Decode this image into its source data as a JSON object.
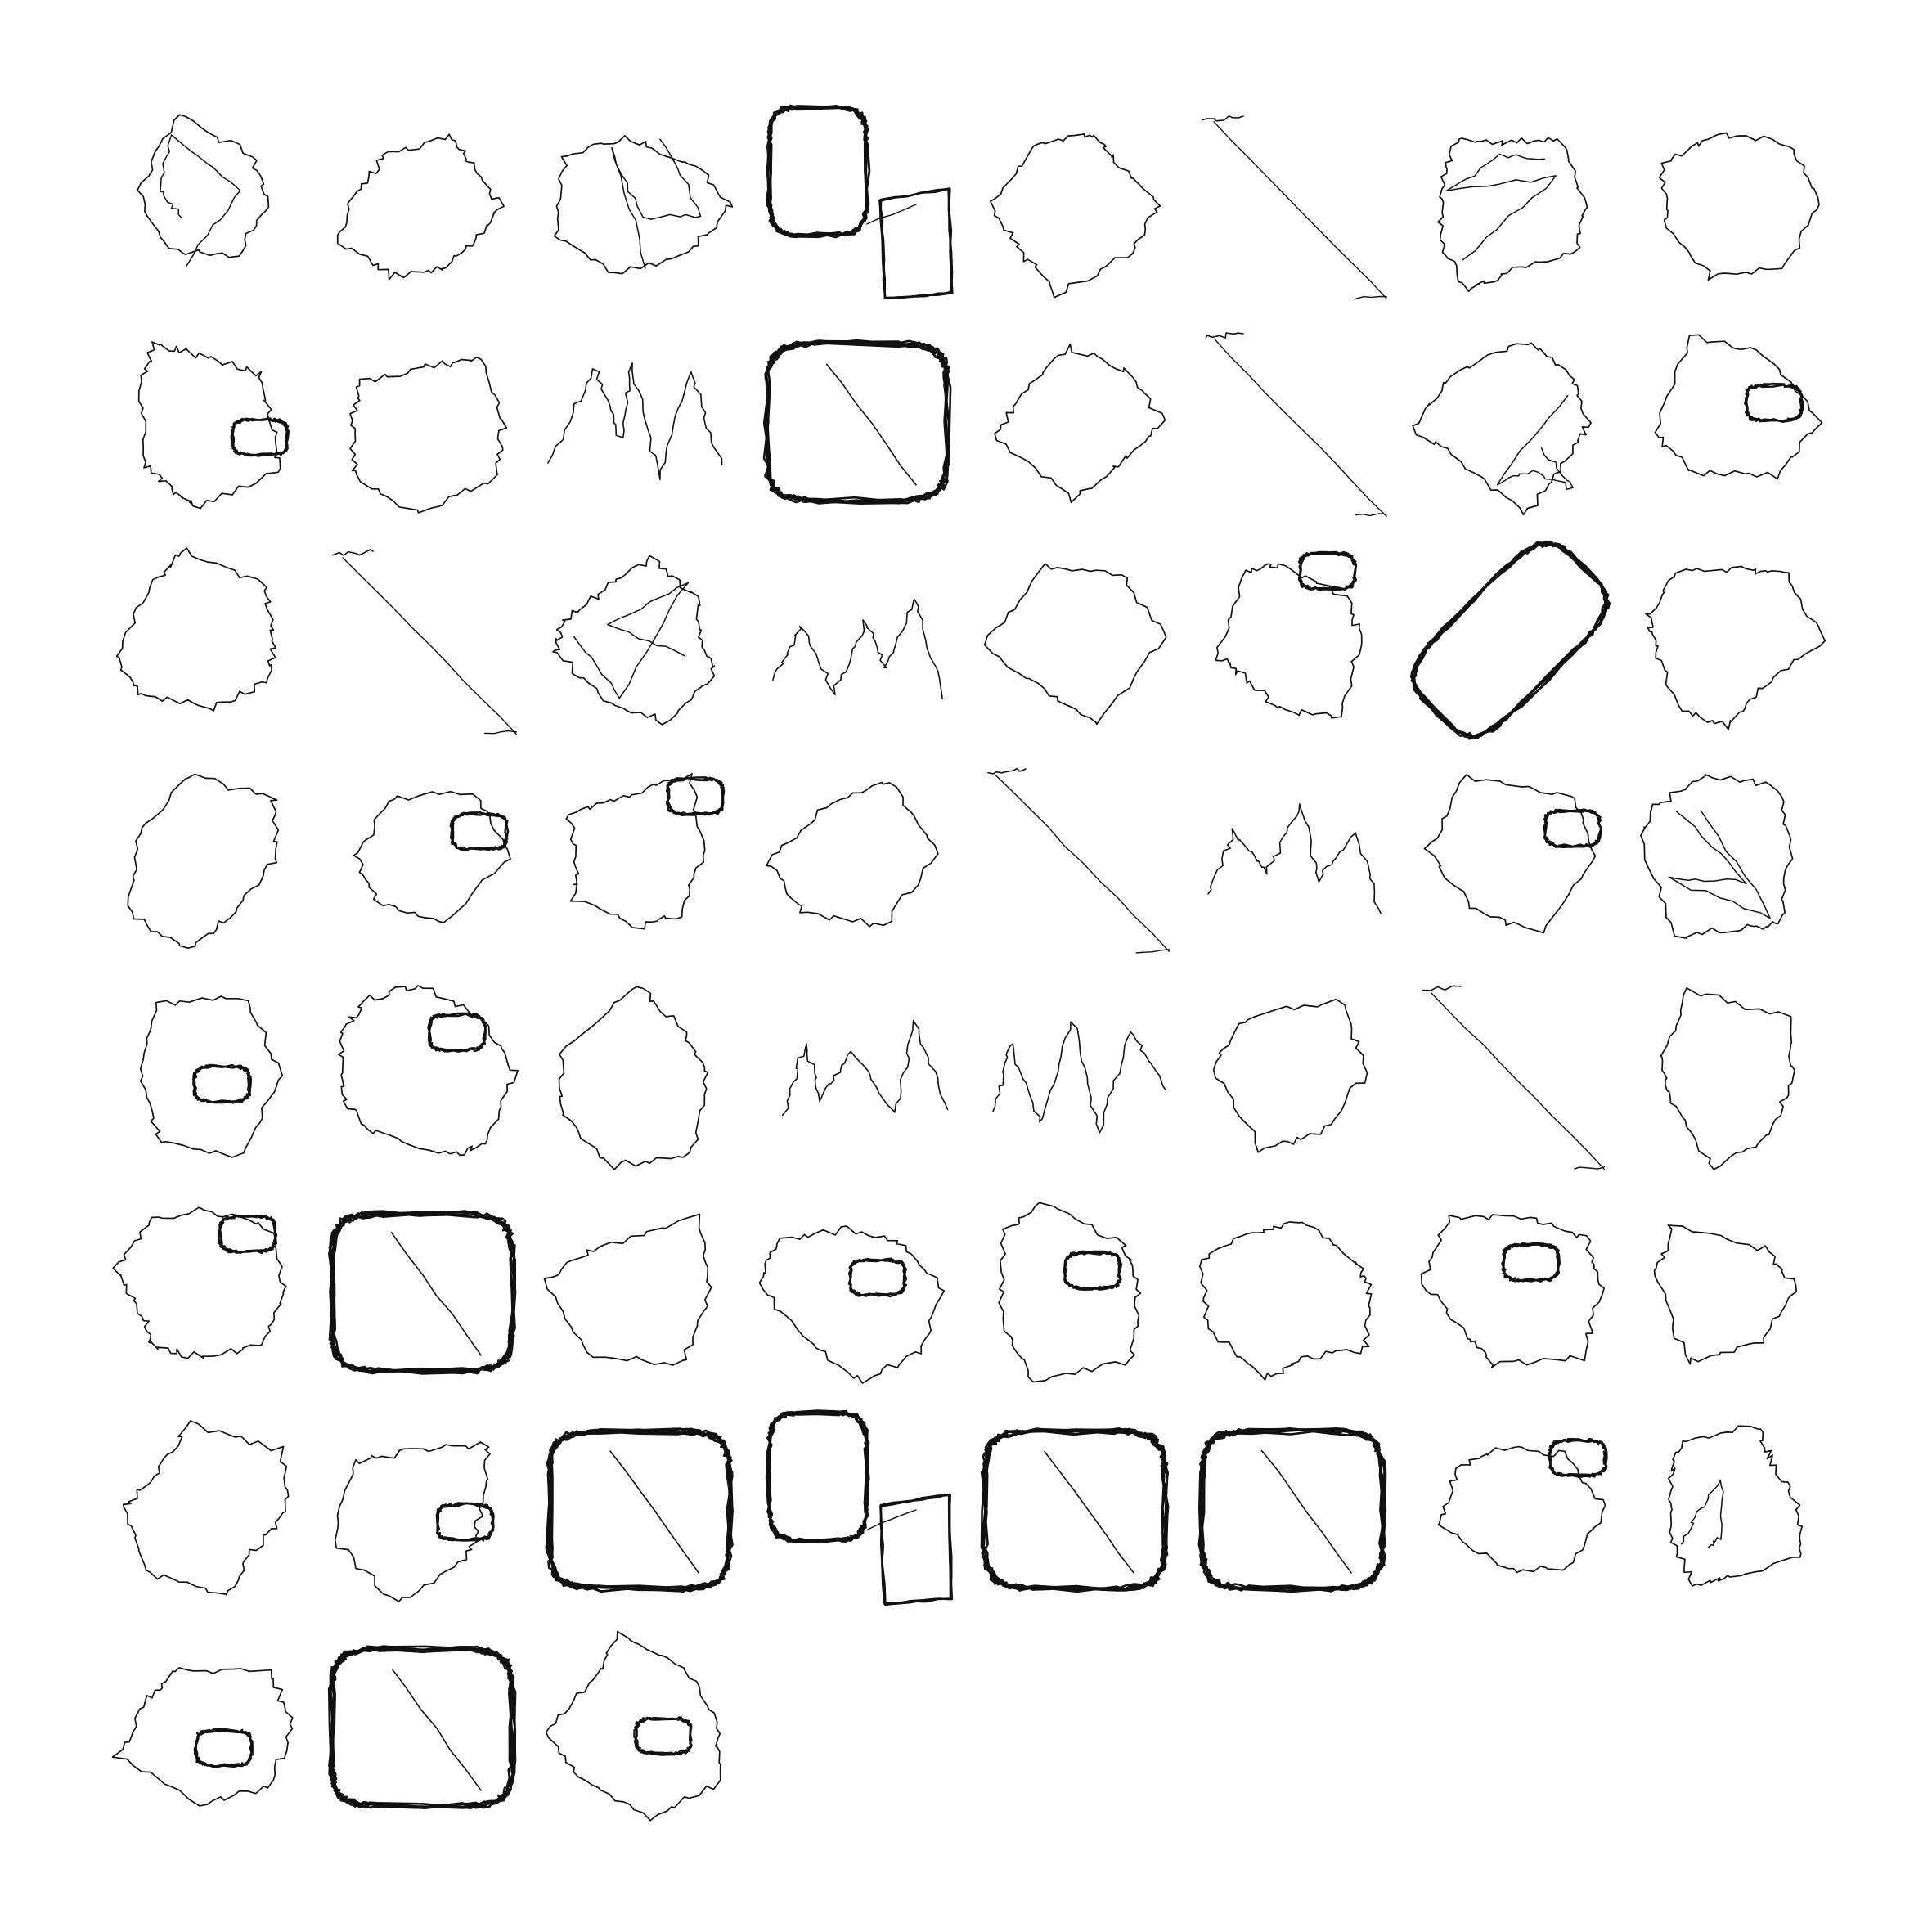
{
  "grid": {
    "columns": 8,
    "rows": 8,
    "total_drawings": 59
  },
  "palette": {
    "background": "#ffffff",
    "stroke": "#111111"
  },
  "drawings": [
    {
      "id": 1,
      "motif": "blob-with-strand"
    },
    {
      "id": 2,
      "motif": "jagged-polygon"
    },
    {
      "id": 3,
      "motif": "loop-and-polygon"
    },
    {
      "id": 4,
      "motif": "double-rect-heavy"
    },
    {
      "id": 5,
      "motif": "jagged-polygon"
    },
    {
      "id": 6,
      "motif": "long-diagonal"
    },
    {
      "id": 7,
      "motif": "blob-with-strand"
    },
    {
      "id": 8,
      "motif": "jagged-polygon"
    },
    {
      "id": 9,
      "motif": "polygon-with-rounded-loop"
    },
    {
      "id": 10,
      "motif": "jagged-polygon"
    },
    {
      "id": 11,
      "motif": "jagged-strand"
    },
    {
      "id": 12,
      "motif": "rounded-rect-heavy"
    },
    {
      "id": 13,
      "motif": "jagged-polygon"
    },
    {
      "id": 14,
      "motif": "long-diagonal"
    },
    {
      "id": 15,
      "motif": "loop-and-polygon"
    },
    {
      "id": 16,
      "motif": "polygon-with-rounded-loop"
    },
    {
      "id": 17,
      "motif": "jagged-polygon"
    },
    {
      "id": 18,
      "motif": "long-diagonal"
    },
    {
      "id": 19,
      "motif": "tangled-loop"
    },
    {
      "id": 20,
      "motif": "jagged-strand"
    },
    {
      "id": 21,
      "motif": "jagged-polygon"
    },
    {
      "id": 22,
      "motif": "polygon-with-rounded-loop"
    },
    {
      "id": 23,
      "motif": "diagonal-oval-heavy"
    },
    {
      "id": 24,
      "motif": "jagged-polygon"
    },
    {
      "id": 25,
      "motif": "jagged-polygon"
    },
    {
      "id": 26,
      "motif": "polygon-with-rounded-loop"
    },
    {
      "id": 27,
      "motif": "wedge-with-oval"
    },
    {
      "id": 28,
      "motif": "jagged-polygon"
    },
    {
      "id": 29,
      "motif": "long-diagonal"
    },
    {
      "id": 30,
      "motif": "jagged-strand"
    },
    {
      "id": 31,
      "motif": "wedge-with-oval"
    },
    {
      "id": 32,
      "motif": "split-polygon"
    },
    {
      "id": 33,
      "motif": "polygon-with-rounded-loop"
    },
    {
      "id": 34,
      "motif": "diagonal-strip"
    },
    {
      "id": 35,
      "motif": "jagged-polygon"
    },
    {
      "id": 36,
      "motif": "zigzag-strand"
    },
    {
      "id": 37,
      "motif": "zigzag-strand"
    },
    {
      "id": 38,
      "motif": "jagged-polygon"
    },
    {
      "id": 39,
      "motif": "long-diagonal"
    },
    {
      "id": 40,
      "motif": "jagged-polygon"
    },
    {
      "id": 41,
      "motif": "triangle-with-loop"
    },
    {
      "id": 42,
      "motif": "rounded-rect-heavy"
    },
    {
      "id": 43,
      "motif": "jagged-polygon"
    },
    {
      "id": 44,
      "motif": "polygon-with-rounded-loop"
    },
    {
      "id": 45,
      "motif": "polygon-with-rounded-loop"
    },
    {
      "id": 46,
      "motif": "jagged-polygon"
    },
    {
      "id": 47,
      "motif": "polygon-with-rounded-loop"
    },
    {
      "id": 48,
      "motif": "jagged-polygon"
    },
    {
      "id": 49,
      "motif": "jagged-polygon"
    },
    {
      "id": 50,
      "motif": "polygon-with-rounded-loop"
    },
    {
      "id": 51,
      "motif": "rounded-rect-heavy"
    },
    {
      "id": 52,
      "motif": "double-rect-heavy"
    },
    {
      "id": 53,
      "motif": "rounded-rect-heavy"
    },
    {
      "id": 54,
      "motif": "rounded-rect-heavy"
    },
    {
      "id": 55,
      "motif": "diagonal-strip"
    },
    {
      "id": 56,
      "motif": "tangled-loop"
    },
    {
      "id": 57,
      "motif": "polygon-with-rounded-loop"
    },
    {
      "id": 58,
      "motif": "rounded-rect-heavy"
    },
    {
      "id": 59,
      "motif": "polygon-with-rounded-loop"
    }
  ]
}
